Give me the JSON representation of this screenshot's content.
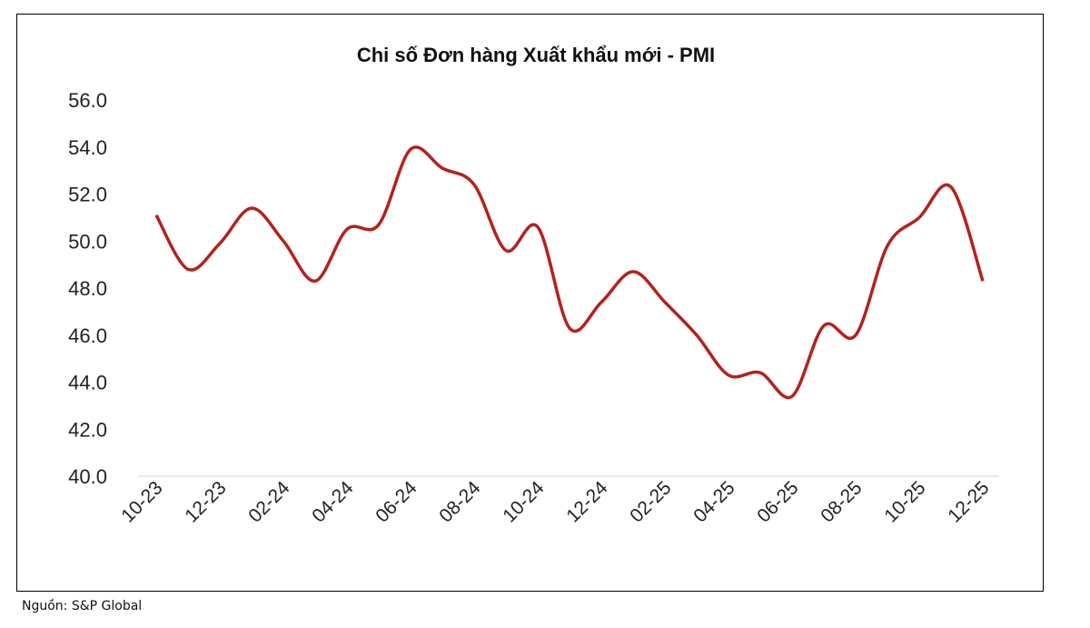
{
  "chart_data": {
    "type": "line",
    "title": "Chi số Đơn hàng Xuất khẩu mới - PMI",
    "xlabel": "",
    "ylabel": "",
    "ylim": [
      40,
      56
    ],
    "yticks": [
      "40.0",
      "42.0",
      "44.0",
      "46.0",
      "48.0",
      "50.0",
      "52.0",
      "54.0",
      "56.0"
    ],
    "x": [
      "10-23",
      "11-23",
      "12-23",
      "01-24",
      "02-24",
      "03-24",
      "04-24",
      "05-24",
      "06-24",
      "07-24",
      "08-24",
      "09-24",
      "10-24",
      "11-24",
      "12-24",
      "01-25",
      "02-25",
      "03-25",
      "04-25",
      "05-25",
      "06-25",
      "07-25",
      "08-25",
      "09-25",
      "10-25",
      "11-25",
      "12-25"
    ],
    "xtick_labels": [
      "10-23",
      "12-23",
      "02-24",
      "04-24",
      "06-24",
      "08-24",
      "10-24",
      "12-24",
      "02-25",
      "04-25",
      "06-25",
      "08-25",
      "10-25",
      "12-25"
    ],
    "series": [
      {
        "values": [
          51.1,
          48.8,
          49.9,
          51.4,
          50.0,
          48.3,
          50.5,
          50.7,
          53.9,
          53.1,
          52.4,
          49.6,
          50.6,
          46.3,
          47.4,
          48.7,
          47.4,
          46.0,
          44.3,
          44.4,
          43.4,
          46.4,
          46.0,
          49.8,
          51.0,
          52.3,
          48.3
        ],
        "color": "#b3221c"
      }
    ],
    "grid": false,
    "legend": "none"
  },
  "source": "Nguồn: S&P Global"
}
